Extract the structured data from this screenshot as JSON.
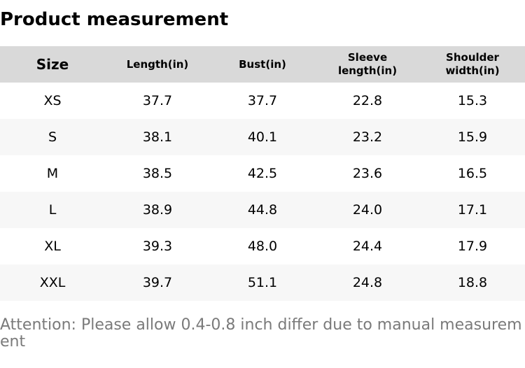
{
  "header": {
    "title": "Product measurement"
  },
  "table": {
    "columns": [
      "Size",
      "Length(in)",
      "Bust(in)",
      "Sleeve length(in)",
      "Shoulder width(in)"
    ],
    "rows": [
      [
        "XS",
        "37.7",
        "37.7",
        "22.8",
        "15.3"
      ],
      [
        "S",
        "38.1",
        "40.1",
        "23.2",
        "15.9"
      ],
      [
        "M",
        "38.5",
        "42.5",
        "23.6",
        "16.5"
      ],
      [
        "L",
        "38.9",
        "44.8",
        "24.0",
        "17.1"
      ],
      [
        "XL",
        "39.3",
        "48.0",
        "24.4",
        "17.9"
      ],
      [
        "XXL",
        "39.7",
        "51.1",
        "24.8",
        "18.8"
      ]
    ]
  },
  "note": "Attention: Please allow 0.4-0.8 inch differ due to manual measurement"
}
